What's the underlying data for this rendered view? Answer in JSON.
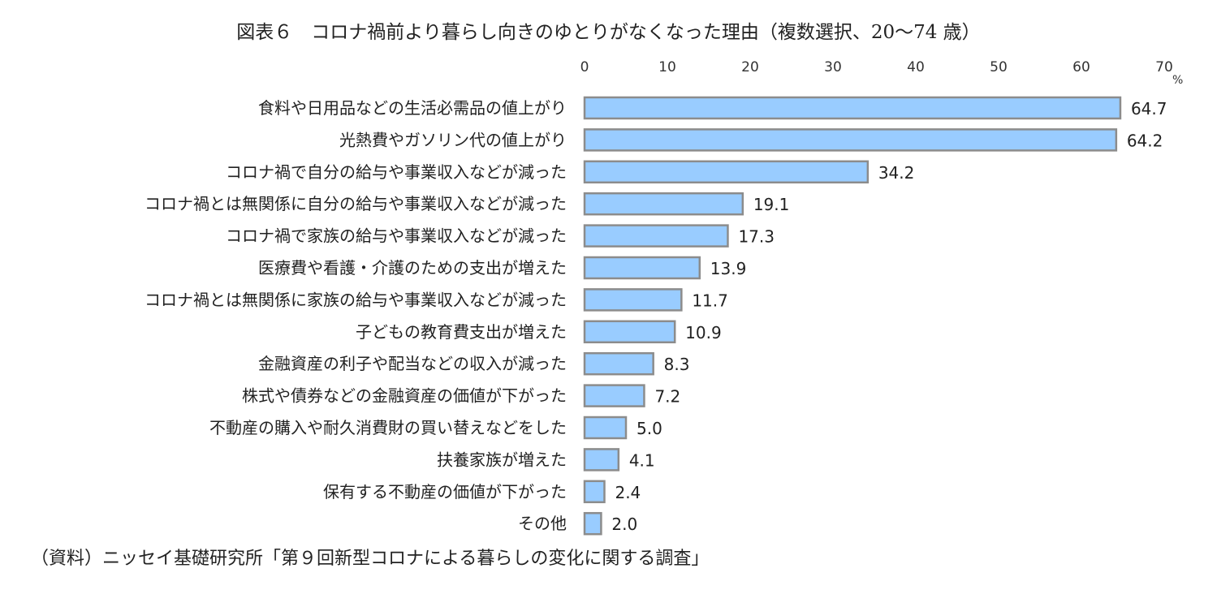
{
  "chart_data": {
    "type": "bar",
    "orientation": "horizontal",
    "title": "図表６　コロナ禍前より暮らし向きのゆとりがなくなった理由（複数選択、20～74 歳）",
    "unit": "%",
    "xlim": [
      0,
      70
    ],
    "xticks": [
      "0",
      "10",
      "20",
      "30",
      "40",
      "50",
      "60",
      "70"
    ],
    "grid": false,
    "bar_color": "#99ccff",
    "bar_edge_color": "#8c8c8c",
    "categories": [
      "食料や日用品などの生活必需品の値上がり",
      "光熱費やガソリン代の値上がり",
      "コロナ禍で自分の給与や事業収入などが減った",
      "コロナ禍とは無関係に自分の給与や事業収入などが減った",
      "コロナ禍で家族の給与や事業収入などが減った",
      "医療費や看護・介護のための支出が増えた",
      "コロナ禍とは無関係に家族の給与や事業収入などが減った",
      "子どもの教育費支出が増えた",
      "金融資産の利子や配当などの収入が減った",
      "株式や債券などの金融資産の価値が下がった",
      "不動産の購入や耐久消費財の買い替えなどをした",
      "扶養家族が増えた",
      "保有する不動産の価値が下がった",
      "その他"
    ],
    "values": [
      64.7,
      64.2,
      34.2,
      19.1,
      17.3,
      13.9,
      11.7,
      10.9,
      8.3,
      7.2,
      5.0,
      4.1,
      2.4,
      2.0
    ],
    "value_labels": [
      "64.7",
      "64.2",
      "34.2",
      "19.1",
      "17.3",
      "13.9",
      "11.7",
      "10.9",
      "8.3",
      "7.2",
      "5.0",
      "4.1",
      "2.4",
      "2.0"
    ]
  },
  "source": "（資料）ニッセイ基礎研究所「第９回新型コロナによる暮らしの変化に関する調査」"
}
